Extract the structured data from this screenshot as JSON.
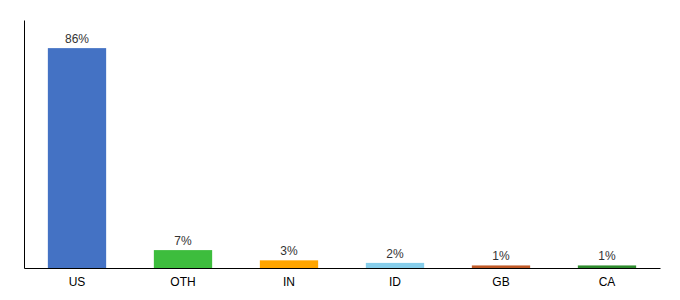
{
  "chart_data": {
    "type": "bar",
    "categories": [
      "US",
      "OTH",
      "IN",
      "ID",
      "GB",
      "CA"
    ],
    "values": [
      86,
      7,
      3,
      2,
      1,
      1
    ],
    "value_labels": [
      "86%",
      "7%",
      "3%",
      "2%",
      "1%",
      "1%"
    ],
    "data_labels": true,
    "colors": [
      "#4472C4",
      "#3DBD3D",
      "#FFA500",
      "#87CEEB",
      "#C05A28",
      "#2E8B2E"
    ],
    "ylim": [
      0,
      97
    ],
    "tick_labels": "x",
    "grid": false
  }
}
